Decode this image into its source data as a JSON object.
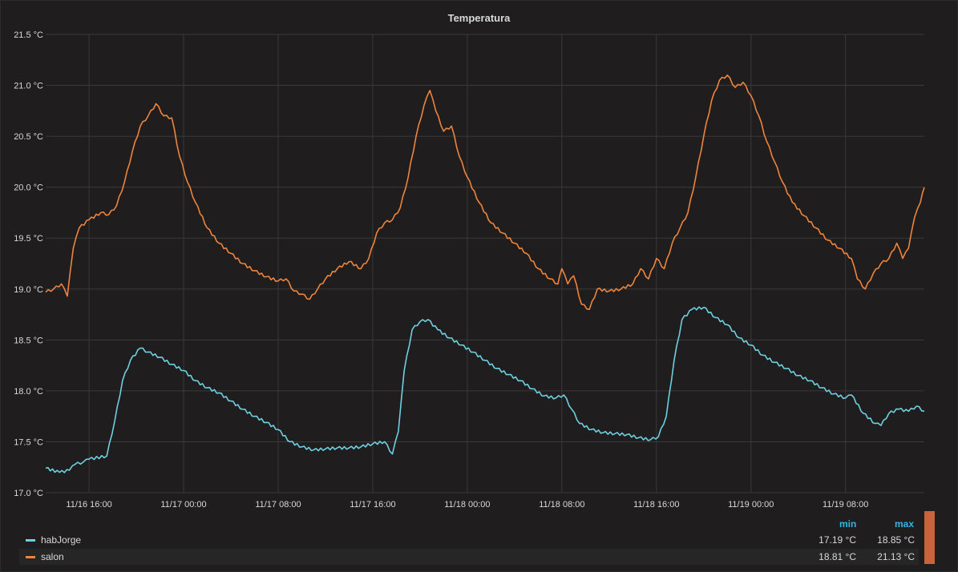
{
  "panel": {
    "title": "Temperatura"
  },
  "legend": {
    "min_label": "min",
    "max_label": "max",
    "items": [
      {
        "name": "habJorge",
        "min": "17.19 °C",
        "max": "18.85 °C",
        "color": "#6ed0e0"
      },
      {
        "name": "salon",
        "min": "18.81 °C",
        "max": "21.13 °C",
        "color": "#ef843c"
      }
    ]
  },
  "chart_data": {
    "type": "line",
    "title": "Temperatura",
    "y_unit": "°C",
    "ylim": [
      17.0,
      21.5
    ],
    "y_ticks": [
      "17.0 °C",
      "17.5 °C",
      "18.0 °C",
      "18.5 °C",
      "19.0 °C",
      "19.5 °C",
      "20.0 °C",
      "20.5 °C",
      "21.0 °C",
      "21.5 °C"
    ],
    "xlim": [
      "2023-11-16 12:20",
      "2023-11-19 14:40"
    ],
    "x_ticks": [
      "11/16 16:00",
      "11/17 00:00",
      "11/17 08:00",
      "11/17 16:00",
      "11/18 00:00",
      "11/18 08:00",
      "11/18 16:00",
      "11/19 00:00",
      "11/19 08:00"
    ],
    "grid": true,
    "series": [
      {
        "name": "habJorge",
        "color": "#6ed0e0",
        "points": [
          [
            "11/16 12:20",
            17.24
          ],
          [
            "11/16 13:30",
            17.2
          ],
          [
            "11/16 14:20",
            17.22
          ],
          [
            "11/16 14:50",
            17.28
          ],
          [
            "11/16 15:30",
            17.3
          ],
          [
            "11/16 16:00",
            17.33
          ],
          [
            "11/16 17:30",
            17.36
          ],
          [
            "11/16 18:10",
            17.7
          ],
          [
            "11/16 18:50",
            18.1
          ],
          [
            "11/16 19:30",
            18.3
          ],
          [
            "11/16 20:20",
            18.42
          ],
          [
            "11/16 21:00",
            18.38
          ],
          [
            "11/16 22:00",
            18.33
          ],
          [
            "11/16 23:00",
            18.26
          ],
          [
            "11/17 00:00",
            18.2
          ],
          [
            "11/17 01:00",
            18.1
          ],
          [
            "11/17 02:00",
            18.03
          ],
          [
            "11/17 03:00",
            17.98
          ],
          [
            "11/17 04:00",
            17.9
          ],
          [
            "11/17 05:00",
            17.82
          ],
          [
            "11/17 06:00",
            17.75
          ],
          [
            "11/17 07:00",
            17.69
          ],
          [
            "11/17 08:00",
            17.62
          ],
          [
            "11/17 09:00",
            17.5
          ],
          [
            "11/17 10:00",
            17.45
          ],
          [
            "11/17 11:00",
            17.42
          ],
          [
            "11/17 12:00",
            17.43
          ],
          [
            "11/17 13:00",
            17.44
          ],
          [
            "11/17 14:00",
            17.44
          ],
          [
            "11/17 15:00",
            17.45
          ],
          [
            "11/17 16:00",
            17.48
          ],
          [
            "11/17 17:00",
            17.5
          ],
          [
            "11/17 17:40",
            17.38
          ],
          [
            "11/17 18:10",
            17.6
          ],
          [
            "11/17 18:40",
            18.2
          ],
          [
            "11/17 19:20",
            18.6
          ],
          [
            "11/17 20:00",
            18.68
          ],
          [
            "11/17 20:40",
            18.7
          ],
          [
            "11/17 21:30",
            18.6
          ],
          [
            "11/17 22:30",
            18.52
          ],
          [
            "11/17 23:30",
            18.45
          ],
          [
            "11/18 00:30",
            18.38
          ],
          [
            "11/18 01:30",
            18.3
          ],
          [
            "11/18 02:30",
            18.22
          ],
          [
            "11/18 03:30",
            18.16
          ],
          [
            "11/18 04:30",
            18.1
          ],
          [
            "11/18 05:30",
            18.02
          ],
          [
            "11/18 06:30",
            17.95
          ],
          [
            "11/18 07:30",
            17.93
          ],
          [
            "11/18 08:10",
            17.96
          ],
          [
            "11/18 08:50",
            17.82
          ],
          [
            "11/18 09:30",
            17.68
          ],
          [
            "11/18 10:30",
            17.62
          ],
          [
            "11/18 11:30",
            17.59
          ],
          [
            "11/18 12:30",
            17.58
          ],
          [
            "11/18 13:30",
            17.57
          ],
          [
            "11/18 14:30",
            17.54
          ],
          [
            "11/18 15:30",
            17.52
          ],
          [
            "11/18 16:10",
            17.55
          ],
          [
            "11/18 16:50",
            17.75
          ],
          [
            "11/18 17:30",
            18.3
          ],
          [
            "11/18 18:10",
            18.7
          ],
          [
            "11/18 19:00",
            18.8
          ],
          [
            "11/18 20:00",
            18.82
          ],
          [
            "11/18 21:00",
            18.72
          ],
          [
            "11/18 22:00",
            18.65
          ],
          [
            "11/18 23:00",
            18.52
          ],
          [
            "11/19 00:00",
            18.45
          ],
          [
            "11/19 01:00",
            18.35
          ],
          [
            "11/19 02:00",
            18.28
          ],
          [
            "11/19 03:00",
            18.22
          ],
          [
            "11/19 04:00",
            18.15
          ],
          [
            "11/19 05:00",
            18.1
          ],
          [
            "11/19 06:00",
            18.03
          ],
          [
            "11/19 07:00",
            17.97
          ],
          [
            "11/19 08:00",
            17.93
          ],
          [
            "11/19 08:30",
            17.96
          ],
          [
            "11/19 09:30",
            17.78
          ],
          [
            "11/19 10:30",
            17.68
          ],
          [
            "11/19 11:00",
            17.66
          ],
          [
            "11/19 11:40",
            17.78
          ],
          [
            "11/19 12:30",
            17.82
          ],
          [
            "11/19 13:20",
            17.8
          ],
          [
            "11/19 14:00",
            17.85
          ],
          [
            "11/19 14:40",
            17.8
          ]
        ]
      },
      {
        "name": "salon",
        "color": "#ef843c",
        "points": [
          [
            "11/16 12:20",
            18.97
          ],
          [
            "11/16 13:00",
            19.0
          ],
          [
            "11/16 13:40",
            19.05
          ],
          [
            "11/16 14:10",
            18.93
          ],
          [
            "11/16 14:40",
            19.4
          ],
          [
            "11/16 15:10",
            19.6
          ],
          [
            "11/16 16:00",
            19.68
          ],
          [
            "11/16 17:00",
            19.75
          ],
          [
            "11/16 17:40",
            19.73
          ],
          [
            "11/16 18:20",
            19.82
          ],
          [
            "11/16 19:00",
            20.05
          ],
          [
            "11/16 19:40",
            20.35
          ],
          [
            "11/16 20:20",
            20.6
          ],
          [
            "11/16 21:00",
            20.7
          ],
          [
            "11/16 21:40",
            20.82
          ],
          [
            "11/16 22:20",
            20.7
          ],
          [
            "11/16 23:00",
            20.68
          ],
          [
            "11/16 23:40",
            20.3
          ],
          [
            "11/17 00:20",
            20.05
          ],
          [
            "11/17 01:00",
            19.85
          ],
          [
            "11/17 02:00",
            19.6
          ],
          [
            "11/17 03:00",
            19.45
          ],
          [
            "11/17 04:00",
            19.35
          ],
          [
            "11/17 05:00",
            19.25
          ],
          [
            "11/17 06:00",
            19.18
          ],
          [
            "11/17 07:00",
            19.12
          ],
          [
            "11/17 08:00",
            19.08
          ],
          [
            "11/17 08:40",
            19.1
          ],
          [
            "11/17 09:20",
            18.98
          ],
          [
            "11/17 10:00",
            18.95
          ],
          [
            "11/17 10:40",
            18.9
          ],
          [
            "11/17 11:20",
            19.0
          ],
          [
            "11/17 12:00",
            19.1
          ],
          [
            "11/17 13:00",
            19.2
          ],
          [
            "11/17 14:00",
            19.27
          ],
          [
            "11/17 15:00",
            19.2
          ],
          [
            "11/17 15:40",
            19.3
          ],
          [
            "11/17 16:20",
            19.55
          ],
          [
            "11/17 17:00",
            19.65
          ],
          [
            "11/17 17:40",
            19.68
          ],
          [
            "11/17 18:20",
            19.8
          ],
          [
            "11/17 19:00",
            20.1
          ],
          [
            "11/17 19:40",
            20.5
          ],
          [
            "11/17 20:20",
            20.8
          ],
          [
            "11/17 20:50",
            20.95
          ],
          [
            "11/17 21:20",
            20.75
          ],
          [
            "11/17 22:00",
            20.55
          ],
          [
            "11/17 22:40",
            20.6
          ],
          [
            "11/17 23:20",
            20.3
          ],
          [
            "11/18 00:00",
            20.1
          ],
          [
            "11/18 01:00",
            19.85
          ],
          [
            "11/18 02:00",
            19.65
          ],
          [
            "11/18 03:00",
            19.55
          ],
          [
            "11/18 04:00",
            19.45
          ],
          [
            "11/18 05:00",
            19.35
          ],
          [
            "11/18 06:00",
            19.2
          ],
          [
            "11/18 07:00",
            19.1
          ],
          [
            "11/18 07:40",
            19.05
          ],
          [
            "11/18 08:00",
            19.2
          ],
          [
            "11/18 08:30",
            19.05
          ],
          [
            "11/18 09:00",
            19.13
          ],
          [
            "11/18 09:40",
            18.85
          ],
          [
            "11/18 10:20",
            18.8
          ],
          [
            "11/18 11:00",
            19.0
          ],
          [
            "11/18 12:00",
            18.98
          ],
          [
            "11/18 13:00",
            19.0
          ],
          [
            "11/18 14:00",
            19.05
          ],
          [
            "11/18 14:40",
            19.2
          ],
          [
            "11/18 15:20",
            19.1
          ],
          [
            "11/18 16:00",
            19.3
          ],
          [
            "11/18 16:40",
            19.2
          ],
          [
            "11/18 17:20",
            19.45
          ],
          [
            "11/18 18:00",
            19.6
          ],
          [
            "11/18 18:40",
            19.75
          ],
          [
            "11/18 19:20",
            20.1
          ],
          [
            "11/18 20:00",
            20.5
          ],
          [
            "11/18 20:40",
            20.85
          ],
          [
            "11/18 21:20",
            21.05
          ],
          [
            "11/18 22:00",
            21.1
          ],
          [
            "11/18 22:40",
            20.98
          ],
          [
            "11/18 23:20",
            21.03
          ],
          [
            "11/19 00:00",
            20.9
          ],
          [
            "11/19 00:40",
            20.7
          ],
          [
            "11/19 01:20",
            20.45
          ],
          [
            "11/19 02:00",
            20.25
          ],
          [
            "11/19 02:40",
            20.05
          ],
          [
            "11/19 03:30",
            19.85
          ],
          [
            "11/19 04:30",
            19.72
          ],
          [
            "11/19 05:30",
            19.6
          ],
          [
            "11/19 06:30",
            19.48
          ],
          [
            "11/19 07:30",
            19.4
          ],
          [
            "11/19 08:30",
            19.3
          ],
          [
            "11/19 09:00",
            19.1
          ],
          [
            "11/19 09:40",
            19.0
          ],
          [
            "11/19 10:20",
            19.15
          ],
          [
            "11/19 11:00",
            19.25
          ],
          [
            "11/19 11:40",
            19.3
          ],
          [
            "11/19 12:20",
            19.45
          ],
          [
            "11/19 12:50",
            19.3
          ],
          [
            "11/19 13:20",
            19.4
          ],
          [
            "11/19 13:50",
            19.7
          ],
          [
            "11/19 14:20",
            19.85
          ],
          [
            "11/19 14:40",
            20.0
          ]
        ]
      }
    ]
  }
}
